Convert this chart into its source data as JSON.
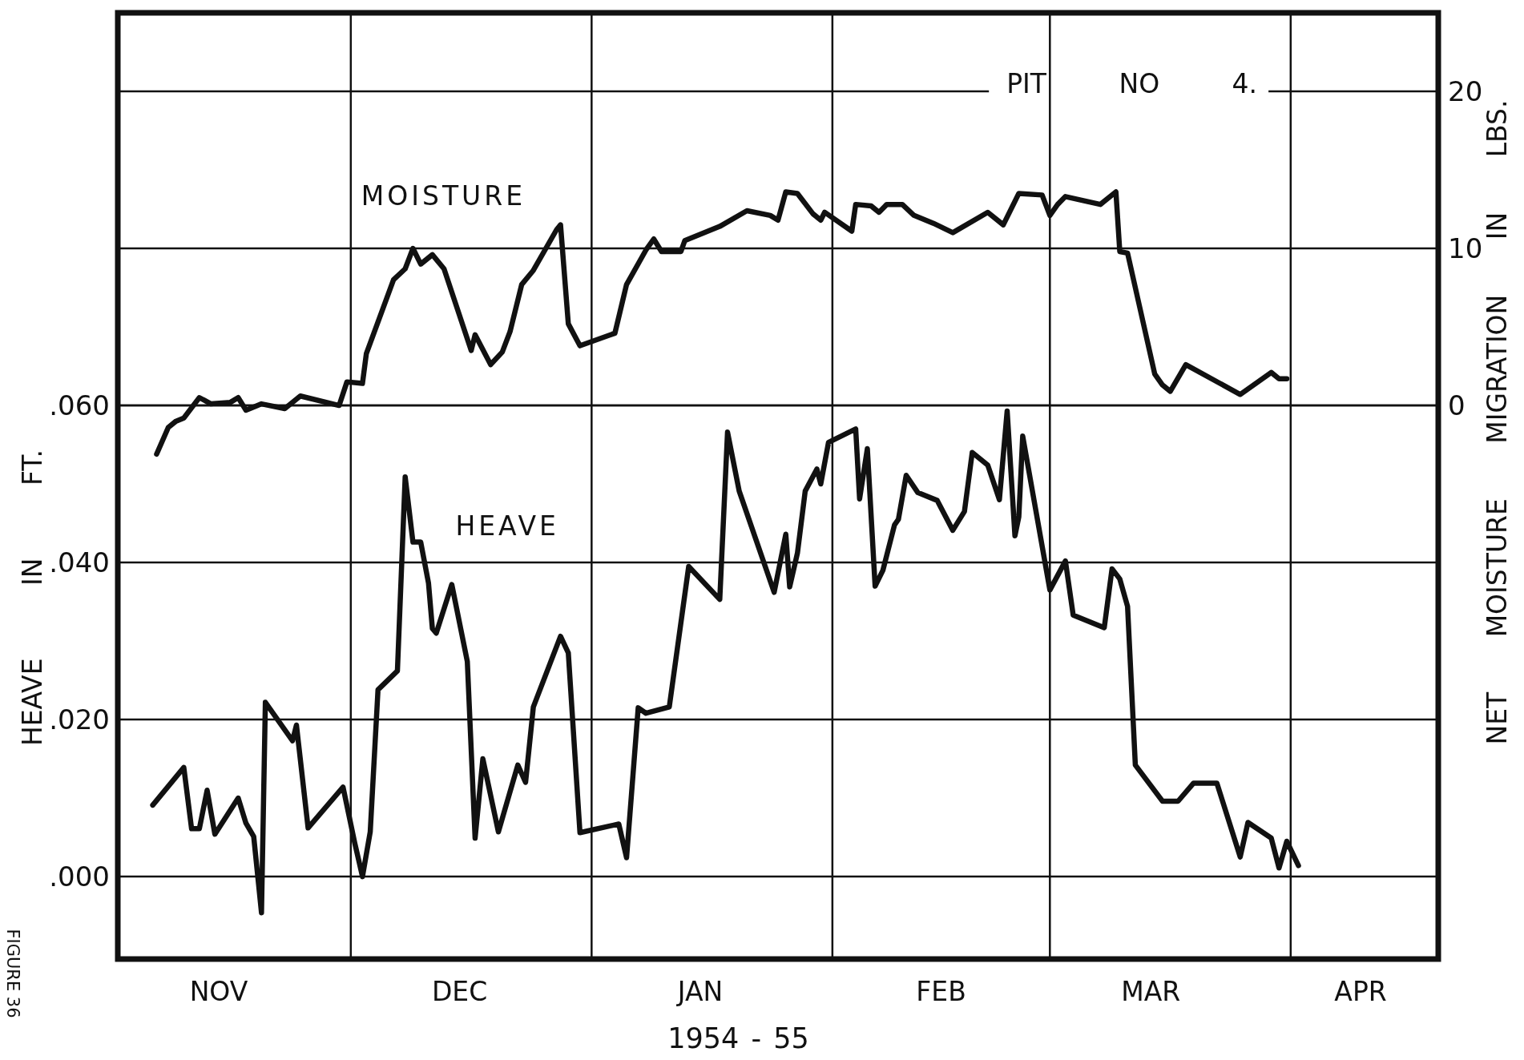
{
  "chart_data": {
    "type": "line",
    "title": "PIT NO 4.",
    "xlabel": "1954 - 55",
    "ylabel": "HEAVE IN FT.",
    "y2label": "NET MOISTURE MIGRATION IN LBS.",
    "annotations": [
      "FIGURE 36"
    ],
    "xlim": [
      "1954-11-01",
      "1955-04-20"
    ],
    "xticks": [
      {
        "value": "1954-11-14",
        "label": "NOV"
      },
      {
        "value": "1954-12-01",
        "label": null
      },
      {
        "value": "1954-12-15",
        "label": "DEC"
      },
      {
        "value": "1955-01-01",
        "label": null
      },
      {
        "value": "1955-01-15",
        "label": "JAN"
      },
      {
        "value": "1955-02-01",
        "label": null
      },
      {
        "value": "1955-02-15",
        "label": "FEB"
      },
      {
        "value": "1955-03-01",
        "label": null
      },
      {
        "value": "1955-03-14",
        "label": "MAR"
      },
      {
        "value": "1955-04-01",
        "label": null
      },
      {
        "value": "1955-04-10",
        "label": "APR"
      }
    ],
    "ylim": [
      -0.0105,
      0.11
    ],
    "yticks": [
      {
        "value": 0,
        "label": ".000"
      },
      {
        "value": 0.02,
        "label": ".020"
      },
      {
        "value": 0.04,
        "label": ".040"
      },
      {
        "value": 0.06,
        "label": ".060"
      }
    ],
    "y2lim": [
      -35.25,
      25
    ],
    "y2ticks": [
      0,
      10,
      20
    ],
    "grid": true,
    "series": [
      {
        "name": "MOISTURE",
        "axis": "y2",
        "color": "#111111",
        "x": [
          "1954-11-06",
          "1954-11-07T12:00",
          "1954-11-08T12:00",
          "1954-11-09T12:00",
          "1954-11-11T12:00",
          "1954-11-13",
          "1954-11-15T12:00",
          "1954-11-16T12:00",
          "1954-11-17T12:00",
          "1954-11-19T12:00",
          "1954-11-22T12:00",
          "1954-11-24T12:00",
          "1954-11-29T12:00",
          "1954-11-30T12:00",
          "1954-12-02T12:00",
          "1954-12-03",
          "1954-12-06T12:00",
          "1954-12-08",
          "1954-12-09",
          "1954-12-10",
          "1954-12-11T12:00",
          "1954-12-13",
          "1954-12-16T12:00",
          "1954-12-17",
          "1954-12-19",
          "1954-12-20T12:00",
          "1954-12-21T12:00",
          "1954-12-23",
          "1954-12-24T12:00",
          "1954-12-27T12:00",
          "1954-12-28",
          "1954-12-29",
          "1954-12-30T12:00",
          "1955-01-04",
          "1955-01-05T12:00",
          "1955-01-08",
          "1955-01-09",
          "1955-01-10",
          "1955-01-12T12:00",
          "1955-01-13",
          "1955-01-17T12:00",
          "1955-01-21",
          "1955-01-24",
          "1955-01-25",
          "1955-01-26",
          "1955-01-27T12:00",
          "1955-01-29T12:00",
          "1955-01-30T12:00",
          "1955-01-31",
          "1955-02-03T12:00",
          "1955-02-04",
          "1955-02-06",
          "1955-02-07",
          "1955-02-08",
          "1955-02-10",
          "1955-02-11T12:00",
          "1955-02-14",
          "1955-02-16T12:00",
          "1955-02-21",
          "1955-02-23",
          "1955-02-25",
          "1955-02-28",
          "1955-03-01",
          "1955-03-02",
          "1955-03-03",
          "1955-03-07T12:00",
          "1955-03-09T12:00",
          "1955-03-10",
          "1955-03-11",
          "1955-03-14T12:00",
          "1955-03-15T12:00",
          "1955-03-16T12:00",
          "1955-03-18T12:00",
          "1955-03-25T12:00",
          "1955-03-29T12:00",
          "1955-03-30T12:00",
          "1955-03-31T12:00"
        ],
        "values": [
          -3.1,
          -1.4,
          -1.0,
          -0.8,
          0.5,
          0.1,
          0.2,
          0.5,
          -0.3,
          0.1,
          -0.2,
          0.6,
          0.0,
          1.5,
          1.4,
          3.3,
          8.0,
          8.7,
          10.0,
          9.0,
          9.6,
          8.7,
          3.5,
          4.5,
          2.6,
          3.4,
          4.7,
          7.7,
          8.6,
          11.2,
          11.5,
          5.2,
          3.8,
          4.6,
          7.7,
          9.9,
          10.6,
          9.8,
          9.8,
          10.5,
          11.4,
          12.4,
          12.1,
          11.8,
          13.6,
          13.5,
          12.2,
          11.8,
          12.3,
          11.1,
          12.8,
          12.7,
          12.3,
          12.8,
          12.8,
          12.1,
          11.6,
          11.0,
          12.3,
          11.5,
          13.5,
          13.4,
          12.1,
          12.8,
          13.3,
          12.8,
          13.6,
          9.8,
          9.7,
          2.0,
          1.3,
          0.9,
          2.6,
          0.7,
          2.1,
          1.7,
          1.7
        ]
      },
      {
        "name": "HEAVE",
        "color": "#111111",
        "x": [
          "1954-11-05T12:00",
          "1954-11-09T12:00",
          "1954-11-10T12:00",
          "1954-11-11T12:00",
          "1954-11-12T12:00",
          "1954-11-13T12:00",
          "1954-11-16T12:00",
          "1954-11-17T12:00",
          "1954-11-18T12:00",
          "1954-11-19T12:00",
          "1954-11-20",
          "1954-11-23T12:00",
          "1954-11-24",
          "1954-11-25T12:00",
          "1954-11-30",
          "1954-12-01T12:00",
          "1954-12-02T12:00",
          "1954-12-03T12:00",
          "1954-12-04T12:00",
          "1954-12-07",
          "1954-12-08",
          "1954-12-09",
          "1954-12-10",
          "1954-12-11",
          "1954-12-11T12:00",
          "1954-12-12",
          "1954-12-14",
          "1954-12-16",
          "1954-12-17",
          "1954-12-18",
          "1954-12-20",
          "1954-12-22T12:00",
          "1954-12-23T12:00",
          "1954-12-24T12:00",
          "1954-12-28",
          "1954-12-29",
          "1954-12-30T12:00",
          "1955-01-04T12:00",
          "1955-01-05T12:00",
          "1955-01-07",
          "1955-01-08",
          "1955-01-11",
          "1955-01-13T12:00",
          "1955-01-17T12:00",
          "1955-01-18T12:00",
          "1955-01-20",
          "1955-01-24T12:00",
          "1955-01-26",
          "1955-01-26T12:00",
          "1955-01-27T12:00",
          "1955-01-28T12:00",
          "1955-01-30",
          "1955-01-30T12:00",
          "1955-01-31T12:00",
          "1955-02-04",
          "1955-02-04T12:00",
          "1955-02-05T12:00",
          "1955-02-06T12:00",
          "1955-02-07T12:00",
          "1955-02-09",
          "1955-02-09T12:00",
          "1955-02-10T12:00",
          "1955-02-12",
          "1955-02-14T12:00",
          "1955-02-16T12:00",
          "1955-02-18",
          "1955-02-19",
          "1955-02-21",
          "1955-02-22T12:00",
          "1955-02-23T12:00",
          "1955-02-24T12:00",
          "1955-02-25",
          "1955-02-25T12:00",
          "1955-03-01",
          "1955-03-03",
          "1955-03-04",
          "1955-03-08",
          "1955-03-09",
          "1955-03-10",
          "1955-03-11",
          "1955-03-12",
          "1955-03-15T12:00",
          "1955-03-17T12:00",
          "1955-03-19T12:00",
          "1955-03-22T12:00",
          "1955-03-25T12:00",
          "1955-03-26T12:00",
          "1955-03-29T12:00",
          "1955-03-30T12:00",
          "1955-03-31T12:00",
          "1955-04-02"
        ],
        "values": [
          0.0091,
          0.0139,
          0.0061,
          0.0061,
          0.011,
          0.0054,
          0.01,
          0.0068,
          0.0051,
          -0.0046,
          0.0222,
          0.0173,
          0.0193,
          0.0062,
          0.0114,
          0.0043,
          0.0,
          0.0057,
          0.0238,
          0.0262,
          0.0509,
          0.0426,
          0.0426,
          0.0374,
          0.0316,
          0.031,
          0.0372,
          0.0274,
          0.0049,
          0.015,
          0.0057,
          0.0142,
          0.012,
          0.0216,
          0.0306,
          0.0285,
          0.0056,
          0.0067,
          0.0024,
          0.0215,
          0.0208,
          0.0216,
          0.0395,
          0.0353,
          0.0566,
          0.0491,
          0.0362,
          0.0436,
          0.0369,
          0.0412,
          0.0491,
          0.0519,
          0.05,
          0.0553,
          0.057,
          0.0481,
          0.0545,
          0.037,
          0.039,
          0.0448,
          0.0455,
          0.0511,
          0.0489,
          0.0479,
          0.0441,
          0.0465,
          0.054,
          0.0524,
          0.048,
          0.0593,
          0.0434,
          0.0458,
          0.0561,
          0.0365,
          0.0402,
          0.0333,
          0.0317,
          0.0392,
          0.0379,
          0.0344,
          0.0142,
          0.0096,
          0.0096,
          0.0119,
          0.0119,
          0.0025,
          0.0069,
          0.0049,
          0.0011,
          0.0045,
          0.0014
        ]
      }
    ]
  }
}
